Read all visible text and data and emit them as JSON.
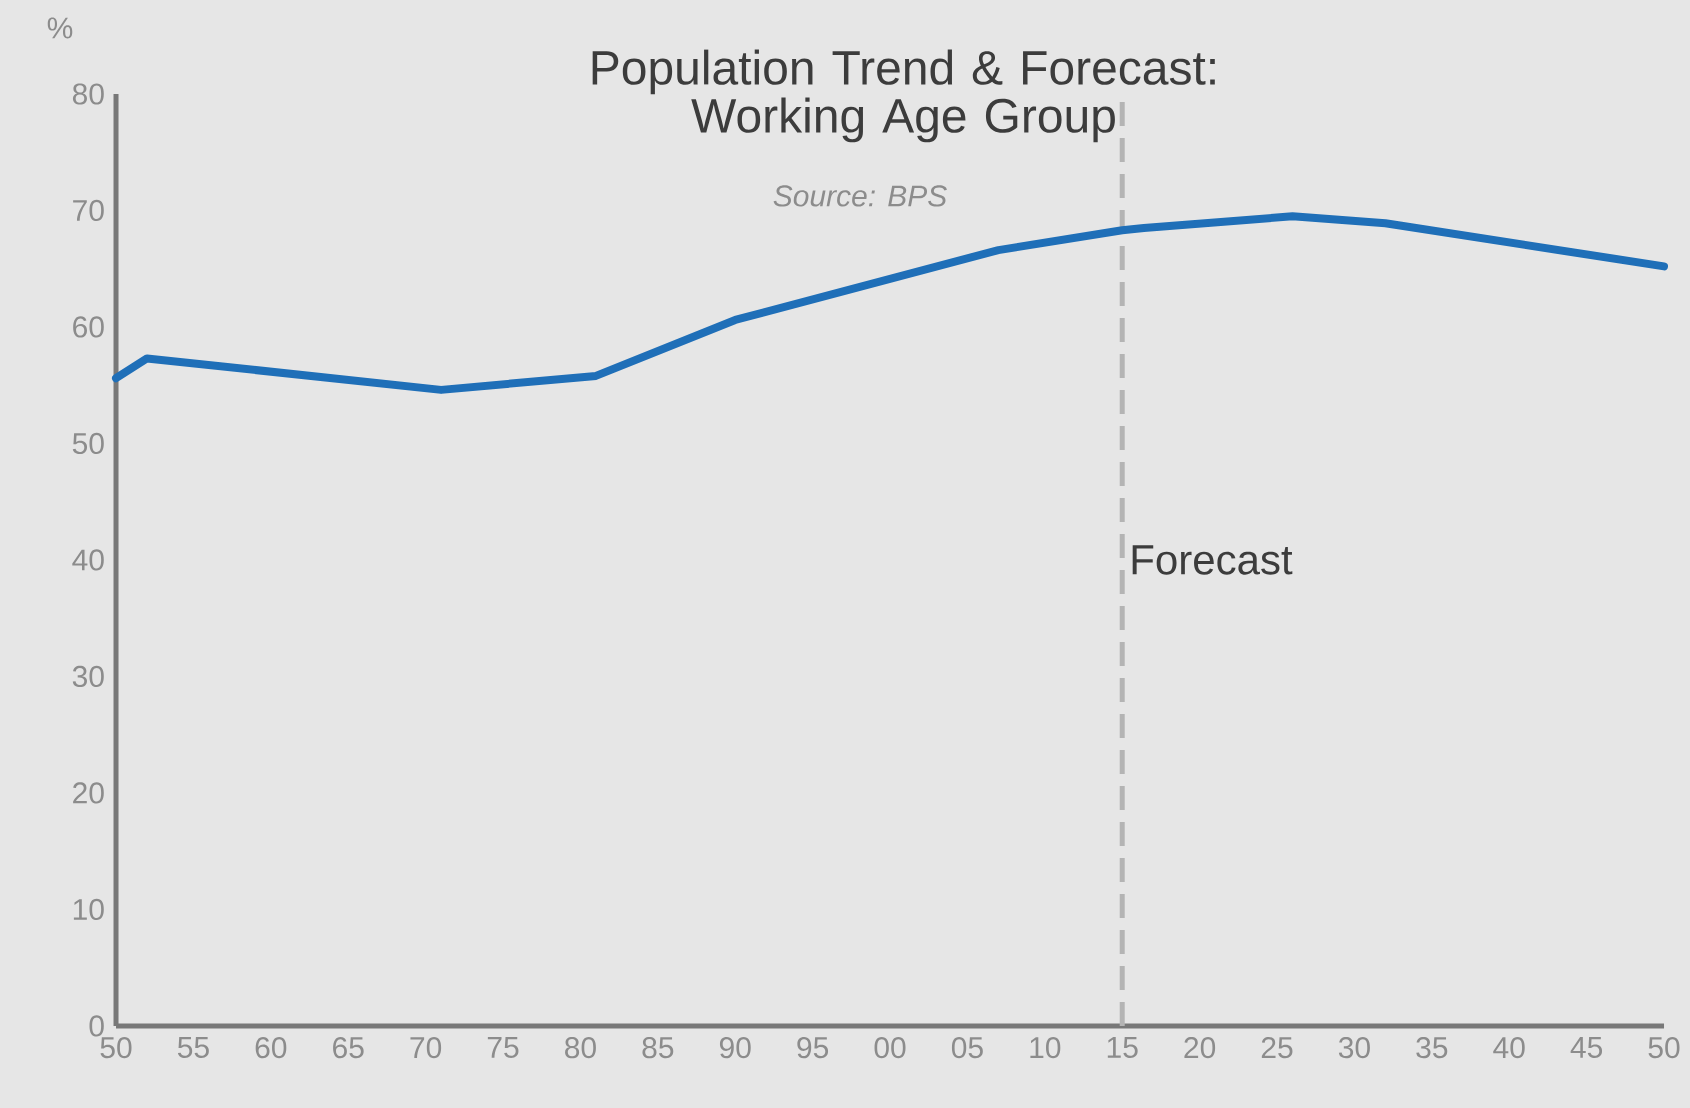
{
  "chart_data": {
    "type": "line",
    "title": "Population Trend & Forecast: Working Age Group",
    "annotations": [
      "Source: BPS"
    ],
    "ylabel": "%",
    "x": [
      1950,
      1952,
      1971,
      1981,
      1990,
      2007,
      2015,
      2016.4,
      2026,
      2032,
      2050
    ],
    "series": [
      {
        "color": "#1f6fb8",
        "values": [
          55.6,
          57.3,
          54.6,
          55.8,
          60.6,
          66.6,
          68.3,
          68.5,
          69.5,
          68.9,
          65.2
        ]
      }
    ],
    "xlim": [
      1950,
      2050
    ],
    "xticks": [
      {
        "value": 1950,
        "label": "50"
      },
      {
        "value": 1955,
        "label": "55"
      },
      {
        "value": 1960,
        "label": "60"
      },
      {
        "value": 1965,
        "label": "65"
      },
      {
        "value": 1970,
        "label": "70"
      },
      {
        "value": 1975,
        "label": "75"
      },
      {
        "value": 1980,
        "label": "80"
      },
      {
        "value": 1985,
        "label": "85"
      },
      {
        "value": 1990,
        "label": "90"
      },
      {
        "value": 1995,
        "label": "95"
      },
      {
        "value": 2000,
        "label": "00"
      },
      {
        "value": 2005,
        "label": "05"
      },
      {
        "value": 2010,
        "label": "10"
      },
      {
        "value": 2015,
        "label": "15"
      },
      {
        "value": 2020,
        "label": "20"
      },
      {
        "value": 2025,
        "label": "25"
      },
      {
        "value": 2030,
        "label": "30"
      },
      {
        "value": 2035,
        "label": "35"
      },
      {
        "value": 2040,
        "label": "40"
      },
      {
        "value": 2045,
        "label": "45"
      },
      {
        "value": 2050,
        "label": "50"
      }
    ],
    "ylim": [
      0,
      80
    ],
    "yticks": [
      0,
      10,
      20,
      30,
      40,
      50,
      60,
      70,
      80
    ],
    "ref_lines": [
      {
        "axis": "x",
        "value": 2015,
        "label": "Forecast",
        "color": "#b4b4b4",
        "line_style": "dashed"
      }
    ],
    "grid": false,
    "line_style": "solid",
    "marker": "none"
  }
}
